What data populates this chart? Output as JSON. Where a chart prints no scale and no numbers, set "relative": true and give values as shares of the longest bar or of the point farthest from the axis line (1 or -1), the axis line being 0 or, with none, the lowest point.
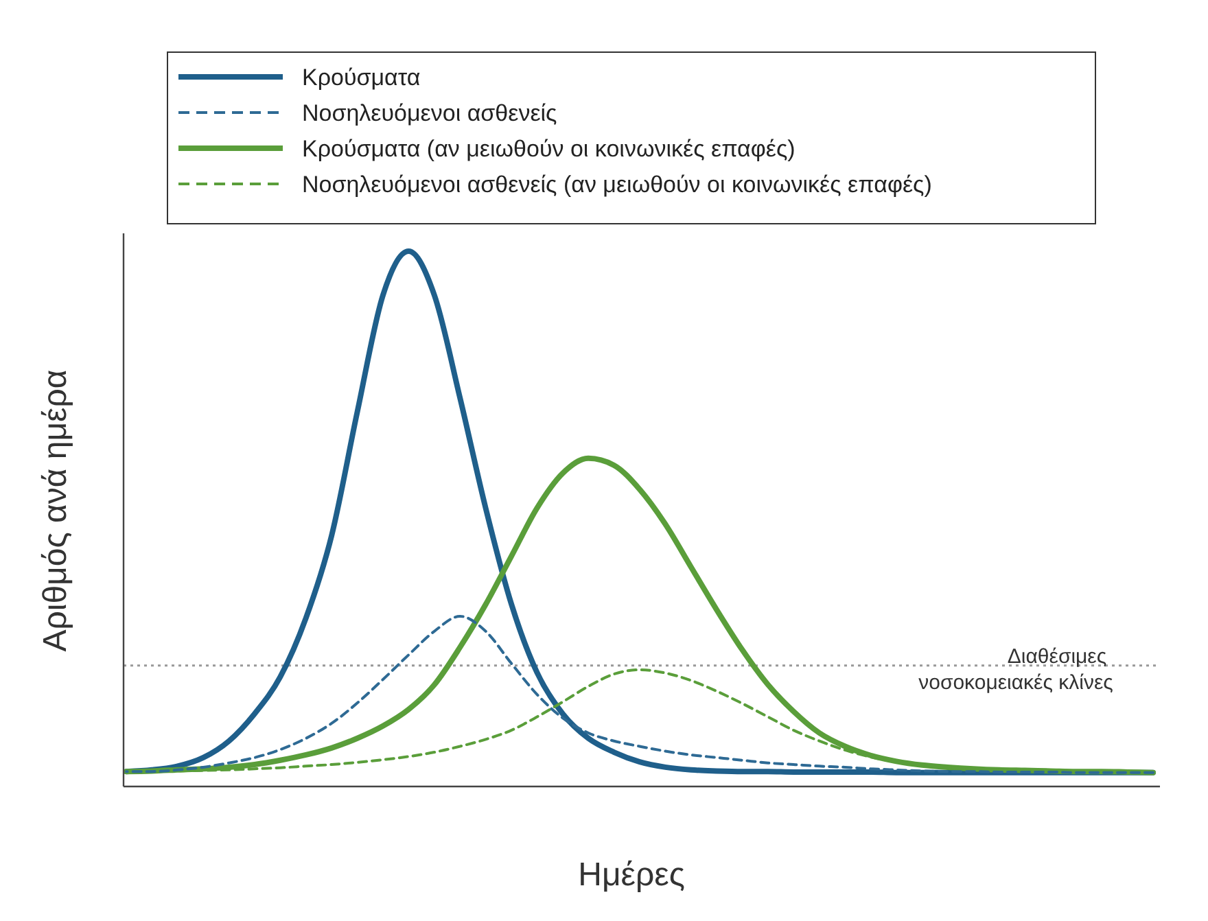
{
  "chart_data": {
    "type": "line",
    "relative": true,
    "xlabel": "Ημέρες",
    "ylabel": "Αριθμός ανά ημέρα",
    "legend": "top",
    "categories": [
      null,
      null,
      null,
      null,
      null,
      null,
      null,
      null,
      null,
      null,
      null,
      null,
      null,
      null,
      null,
      null,
      null,
      null,
      null,
      null,
      null,
      null,
      null,
      null,
      null,
      null,
      null,
      null,
      null,
      null,
      null,
      null,
      null,
      null,
      null,
      null,
      null,
      null,
      null,
      null,
      null
    ],
    "series": [
      {
        "name": "Κρούσματα",
        "color": "#1f5f8b",
        "line_style": "solid",
        "values": [
          0.028,
          0.031,
          0.038,
          0.054,
          0.085,
          0.136,
          0.205,
          0.315,
          0.469,
          0.7,
          0.918,
          1,
          0.918,
          0.726,
          0.52,
          0.341,
          0.213,
          0.136,
          0.09,
          0.064,
          0.046,
          0.036,
          0.031,
          0.029,
          0.028,
          0.028,
          0.027,
          0.027,
          0.027,
          0.027,
          0.026,
          0.026,
          0.026,
          0.026,
          0.026,
          0.026,
          0.026,
          0.026,
          0.026,
          0.026,
          0.026
        ]
      },
      {
        "name": "Νοσηλευόμενοι ασθενείς",
        "color": "#2e6a94",
        "line_style": "dashed",
        "values": [
          0.028,
          0.028,
          0.031,
          0.036,
          0.044,
          0.054,
          0.069,
          0.09,
          0.118,
          0.156,
          0.2,
          0.246,
          0.29,
          0.318,
          0.29,
          0.23,
          0.172,
          0.128,
          0.1,
          0.085,
          0.075,
          0.066,
          0.059,
          0.054,
          0.049,
          0.044,
          0.041,
          0.038,
          0.036,
          0.033,
          0.031,
          0.029,
          0.028,
          0.028,
          0.027,
          0.027,
          0.027,
          0.026,
          0.026,
          0.026,
          0.026
        ]
      },
      {
        "name": "Κρούσματα (αν μειωθούν οι κοινωνικές επαφές)",
        "color": "#5a9e3a",
        "line_style": "solid",
        "values": [
          0.028,
          0.029,
          0.031,
          0.033,
          0.036,
          0.041,
          0.049,
          0.059,
          0.072,
          0.09,
          0.113,
          0.144,
          0.19,
          0.26,
          0.34,
          0.43,
          0.52,
          0.585,
          0.613,
          0.6,
          0.555,
          0.49,
          0.41,
          0.33,
          0.255,
          0.19,
          0.14,
          0.1,
          0.075,
          0.058,
          0.047,
          0.04,
          0.036,
          0.033,
          0.031,
          0.03,
          0.029,
          0.028,
          0.028,
          0.027,
          0.026
        ]
      },
      {
        "name": "Νοσηλευόμενοι ασθενείς (αν μειωθούν οι κοινωνικές επαφές)",
        "color": "#5a9e3a",
        "line_style": "dashed",
        "values": [
          0.028,
          0.028,
          0.029,
          0.03,
          0.031,
          0.033,
          0.035,
          0.038,
          0.041,
          0.045,
          0.05,
          0.056,
          0.064,
          0.075,
          0.088,
          0.105,
          0.13,
          0.158,
          0.187,
          0.21,
          0.218,
          0.212,
          0.198,
          0.178,
          0.155,
          0.13,
          0.105,
          0.085,
          0.068,
          0.055,
          0.046,
          0.04,
          0.035,
          0.032,
          0.03,
          0.029,
          0.028,
          0.028,
          0.027,
          0.027,
          0.026
        ]
      }
    ],
    "ref_lines": [
      {
        "axis": "y",
        "value": 0.226,
        "label": "Διαθέσιμες νοσοκομειακές κλίνες",
        "color": "#999999",
        "line_style": "dotted"
      }
    ]
  }
}
